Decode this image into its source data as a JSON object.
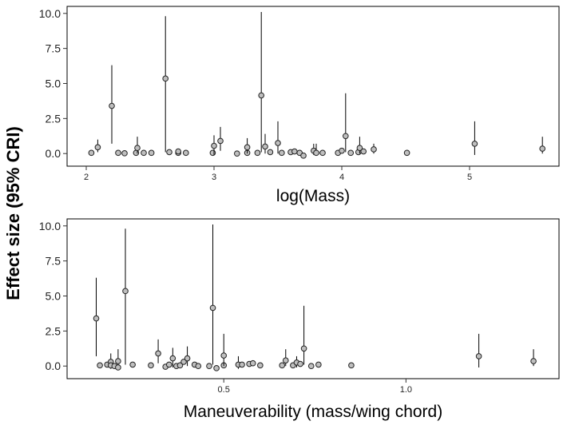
{
  "y_label": "Effect size (95% CRI)",
  "chart_data": [
    {
      "type": "scatter",
      "xlabel": "log(Mass)",
      "ylabel": "Effect size (95% CRI)",
      "xlim": [
        1.85,
        5.7
      ],
      "ylim": [
        -0.9,
        10.5
      ],
      "xticks": [
        2,
        3,
        4,
        5
      ],
      "xtick_labels": [
        "2",
        "3",
        "4",
        "5"
      ],
      "yticks": [
        0,
        2.5,
        5,
        7.5,
        10
      ],
      "ytick_labels": [
        "0.0",
        "2.5",
        "5.0",
        "7.5",
        "10.0"
      ],
      "grid": false,
      "marker_color": "#bfbfbf",
      "points": [
        {
          "x": 2.04,
          "y": 0.05,
          "lo": null,
          "hi": null
        },
        {
          "x": 2.09,
          "y": 0.45,
          "lo": 0.1,
          "hi": 1.0
        },
        {
          "x": 2.2,
          "y": 3.4,
          "lo": 0.7,
          "hi": 6.3
        },
        {
          "x": 2.25,
          "y": 0.05,
          "lo": null,
          "hi": null
        },
        {
          "x": 2.3,
          "y": 0.02,
          "lo": null,
          "hi": null
        },
        {
          "x": 2.39,
          "y": 0.05,
          "lo": null,
          "hi": null
        },
        {
          "x": 2.4,
          "y": 0.4,
          "lo": 0.0,
          "hi": 1.2
        },
        {
          "x": 2.45,
          "y": 0.05,
          "lo": null,
          "hi": null
        },
        {
          "x": 2.51,
          "y": 0.05,
          "lo": null,
          "hi": null
        },
        {
          "x": 2.62,
          "y": 5.35,
          "lo": 0.1,
          "hi": 9.8
        },
        {
          "x": 2.65,
          "y": 0.1,
          "lo": null,
          "hi": null
        },
        {
          "x": 2.72,
          "y": 0.05,
          "lo": null,
          "hi": null
        },
        {
          "x": 2.72,
          "y": 0.15,
          "lo": null,
          "hi": null
        },
        {
          "x": 2.78,
          "y": 0.05,
          "lo": null,
          "hi": null
        },
        {
          "x": 2.99,
          "y": 0.05,
          "lo": null,
          "hi": null
        },
        {
          "x": 3.0,
          "y": 0.55,
          "lo": -0.1,
          "hi": 1.3
        },
        {
          "x": 3.05,
          "y": 0.9,
          "lo": 0.2,
          "hi": 1.9
        },
        {
          "x": 3.18,
          "y": 0.0,
          "lo": null,
          "hi": null
        },
        {
          "x": 3.26,
          "y": 0.05,
          "lo": null,
          "hi": null
        },
        {
          "x": 3.26,
          "y": 0.45,
          "lo": 0.0,
          "hi": 1.1
        },
        {
          "x": 3.34,
          "y": 0.05,
          "lo": null,
          "hi": null
        },
        {
          "x": 3.37,
          "y": 4.15,
          "lo": 0.1,
          "hi": 10.1
        },
        {
          "x": 3.4,
          "y": 0.5,
          "lo": 0.0,
          "hi": 1.4
        },
        {
          "x": 3.44,
          "y": 0.1,
          "lo": null,
          "hi": null
        },
        {
          "x": 3.5,
          "y": 0.75,
          "lo": 0.0,
          "hi": 2.3
        },
        {
          "x": 3.53,
          "y": 0.05,
          "lo": null,
          "hi": null
        },
        {
          "x": 3.6,
          "y": 0.1,
          "lo": null,
          "hi": null
        },
        {
          "x": 3.63,
          "y": 0.15,
          "lo": null,
          "hi": null
        },
        {
          "x": 3.67,
          "y": 0.05,
          "lo": null,
          "hi": null
        },
        {
          "x": 3.7,
          "y": -0.15,
          "lo": null,
          "hi": null
        },
        {
          "x": 3.78,
          "y": 0.2,
          "lo": -0.1,
          "hi": 0.7
        },
        {
          "x": 3.8,
          "y": 0.05,
          "lo": -0.1,
          "hi": 0.7
        },
        {
          "x": 3.85,
          "y": 0.05,
          "lo": null,
          "hi": null
        },
        {
          "x": 3.97,
          "y": 0.05,
          "lo": null,
          "hi": null
        },
        {
          "x": 4.0,
          "y": 0.2,
          "lo": null,
          "hi": null
        },
        {
          "x": 4.03,
          "y": 1.25,
          "lo": 0.1,
          "hi": 4.3
        },
        {
          "x": 4.07,
          "y": 0.05,
          "lo": null,
          "hi": null
        },
        {
          "x": 4.13,
          "y": 0.1,
          "lo": null,
          "hi": null
        },
        {
          "x": 4.14,
          "y": 0.4,
          "lo": 0.0,
          "hi": 1.2
        },
        {
          "x": 4.17,
          "y": 0.15,
          "lo": null,
          "hi": null
        },
        {
          "x": 4.25,
          "y": 0.3,
          "lo": 0.0,
          "hi": 0.7
        },
        {
          "x": 4.51,
          "y": 0.05,
          "lo": null,
          "hi": null
        },
        {
          "x": 5.04,
          "y": 0.7,
          "lo": -0.1,
          "hi": 2.3
        },
        {
          "x": 5.57,
          "y": 0.35,
          "lo": 0.0,
          "hi": 1.2
        }
      ]
    },
    {
      "type": "scatter",
      "xlabel": "Maneuverability (mass/wing chord)",
      "ylabel": "Effect size (95% CRI)",
      "xlim": [
        0.07,
        1.42
      ],
      "ylim": [
        -0.9,
        10.5
      ],
      "xticks": [
        0.5,
        1.0
      ],
      "xtick_labels": [
        "0.5",
        "1.0"
      ],
      "yticks": [
        0,
        2.5,
        5,
        7.5,
        10
      ],
      "ytick_labels": [
        "0.0",
        "2.5",
        "5.0",
        "7.5",
        "10.0"
      ],
      "grid": false,
      "marker_color": "#bfbfbf",
      "points": [
        {
          "x": 0.15,
          "y": 3.4,
          "lo": 0.7,
          "hi": 6.3
        },
        {
          "x": 0.16,
          "y": 0.05,
          "lo": null,
          "hi": null
        },
        {
          "x": 0.18,
          "y": 0.1,
          "lo": null,
          "hi": null
        },
        {
          "x": 0.19,
          "y": 0.3,
          "lo": -0.2,
          "hi": 0.9
        },
        {
          "x": 0.19,
          "y": 0.05,
          "lo": null,
          "hi": null
        },
        {
          "x": 0.2,
          "y": 0.0,
          "lo": null,
          "hi": null
        },
        {
          "x": 0.21,
          "y": 0.35,
          "lo": -0.2,
          "hi": 1.2
        },
        {
          "x": 0.21,
          "y": -0.1,
          "lo": null,
          "hi": null
        },
        {
          "x": 0.23,
          "y": 5.35,
          "lo": 0.1,
          "hi": 9.8
        },
        {
          "x": 0.25,
          "y": 0.1,
          "lo": null,
          "hi": null
        },
        {
          "x": 0.3,
          "y": 0.05,
          "lo": null,
          "hi": null
        },
        {
          "x": 0.32,
          "y": 0.9,
          "lo": 0.2,
          "hi": 1.9
        },
        {
          "x": 0.34,
          "y": -0.05,
          "lo": null,
          "hi": null
        },
        {
          "x": 0.35,
          "y": 0.1,
          "lo": null,
          "hi": null
        },
        {
          "x": 0.36,
          "y": 0.55,
          "lo": -0.1,
          "hi": 1.3
        },
        {
          "x": 0.37,
          "y": 0.0,
          "lo": null,
          "hi": null
        },
        {
          "x": 0.38,
          "y": 0.05,
          "lo": null,
          "hi": null
        },
        {
          "x": 0.39,
          "y": 0.3,
          "lo": null,
          "hi": null
        },
        {
          "x": 0.4,
          "y": 0.55,
          "lo": 0.0,
          "hi": 1.4
        },
        {
          "x": 0.42,
          "y": 0.1,
          "lo": null,
          "hi": null
        },
        {
          "x": 0.43,
          "y": 0.0,
          "lo": null,
          "hi": null
        },
        {
          "x": 0.46,
          "y": 0.0,
          "lo": null,
          "hi": null
        },
        {
          "x": 0.47,
          "y": 4.15,
          "lo": 0.1,
          "hi": 10.1
        },
        {
          "x": 0.48,
          "y": -0.15,
          "lo": null,
          "hi": null
        },
        {
          "x": 0.5,
          "y": 0.05,
          "lo": null,
          "hi": null
        },
        {
          "x": 0.5,
          "y": 0.75,
          "lo": 0.0,
          "hi": 2.3
        },
        {
          "x": 0.54,
          "y": 0.1,
          "lo": -0.2,
          "hi": 0.7
        },
        {
          "x": 0.55,
          "y": 0.1,
          "lo": null,
          "hi": null
        },
        {
          "x": 0.57,
          "y": 0.15,
          "lo": null,
          "hi": null
        },
        {
          "x": 0.58,
          "y": 0.2,
          "lo": null,
          "hi": null
        },
        {
          "x": 0.6,
          "y": 0.05,
          "lo": null,
          "hi": null
        },
        {
          "x": 0.66,
          "y": 0.05,
          "lo": null,
          "hi": null
        },
        {
          "x": 0.67,
          "y": 0.4,
          "lo": 0.0,
          "hi": 1.2
        },
        {
          "x": 0.69,
          "y": 0.05,
          "lo": null,
          "hi": null
        },
        {
          "x": 0.7,
          "y": 0.25,
          "lo": -0.1,
          "hi": 0.7
        },
        {
          "x": 0.71,
          "y": 0.15,
          "lo": null,
          "hi": null
        },
        {
          "x": 0.72,
          "y": 1.25,
          "lo": 0.1,
          "hi": 4.3
        },
        {
          "x": 0.74,
          "y": 0.0,
          "lo": null,
          "hi": null
        },
        {
          "x": 0.76,
          "y": 0.1,
          "lo": null,
          "hi": null
        },
        {
          "x": 0.85,
          "y": 0.05,
          "lo": null,
          "hi": null
        },
        {
          "x": 1.2,
          "y": 0.7,
          "lo": -0.1,
          "hi": 2.3
        },
        {
          "x": 1.35,
          "y": 0.35,
          "lo": 0.0,
          "hi": 1.2
        }
      ]
    }
  ]
}
